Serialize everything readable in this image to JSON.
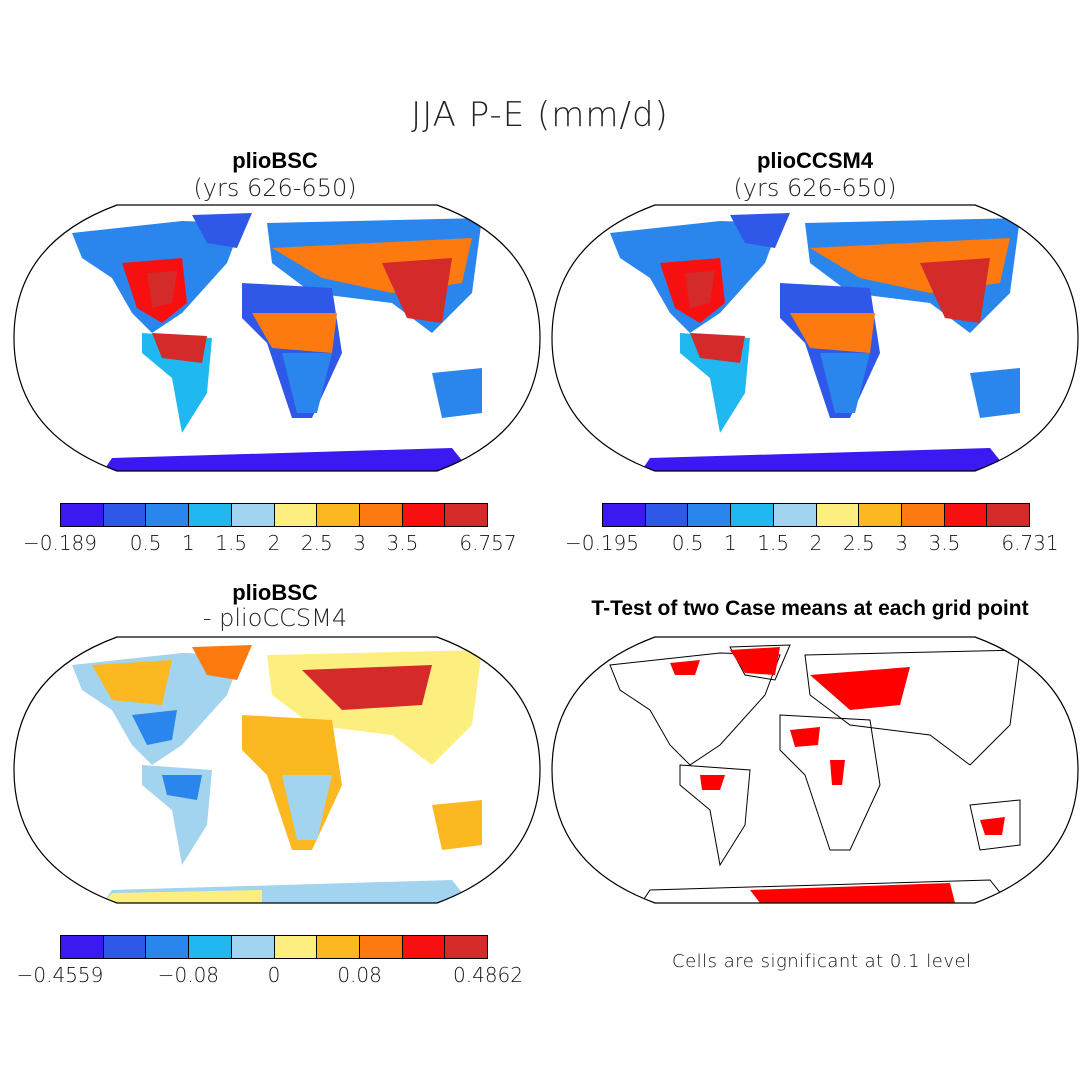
{
  "main_title": "JJA P-E (mm/d)",
  "panels": [
    {
      "title": "plioBSC",
      "subtitle": "(yrs 626-650)"
    },
    {
      "title": "plioCCSM4",
      "subtitle": "(yrs 626-650)"
    },
    {
      "title": "plioBSC",
      "subtitle": "- plioCCSM4"
    },
    {
      "title": "T-Test of two Case means at each grid point",
      "subtitle": ""
    }
  ],
  "colorbars": [
    {
      "colors": [
        "#3a1af0",
        "#2f58e8",
        "#2a86ec",
        "#1fb8f0",
        "#a2d3ef",
        "#fcef80",
        "#fcb820",
        "#fc7a10",
        "#f81010",
        "#d42a2a"
      ],
      "labels": [
        "-0.189",
        "0.5",
        "1",
        "1.5",
        "2",
        "2.5",
        "3",
        "3.5",
        "6.757"
      ]
    },
    {
      "colors": [
        "#3a1af0",
        "#2f58e8",
        "#2a86ec",
        "#1fb8f0",
        "#a2d3ef",
        "#fcef80",
        "#fcb820",
        "#fc7a10",
        "#f81010",
        "#d42a2a"
      ],
      "labels": [
        "-0.195",
        "0.5",
        "1",
        "1.5",
        "2",
        "2.5",
        "3",
        "3.5",
        "6.731"
      ]
    },
    {
      "colors": [
        "#3a1af0",
        "#2f58e8",
        "#2a86ec",
        "#1fb8f0",
        "#a2d3ef",
        "#fcef80",
        "#fcb820",
        "#fc7a10",
        "#f81010",
        "#d42a2a"
      ],
      "labels": [
        "-0.4559",
        "-0.08",
        "0",
        "0.08",
        "0.4862"
      ]
    }
  ],
  "footnote": "Cells are significant at 0.1 level",
  "significance_color": "#ff0000",
  "map_outline_color": "#000000"
}
